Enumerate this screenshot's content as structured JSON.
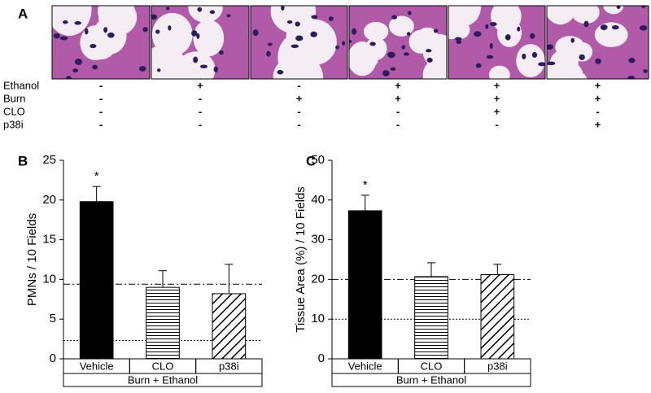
{
  "panel_a": {
    "label": "A",
    "rows": [
      {
        "name": "Ethanol",
        "signs": [
          "-",
          "+",
          "-",
          "+",
          "+",
          "+"
        ]
      },
      {
        "name": "Burn",
        "signs": [
          "-",
          "-",
          "+",
          "+",
          "+",
          "+"
        ]
      },
      {
        "name": "CLO",
        "signs": [
          "-",
          "-",
          "-",
          "-",
          "+",
          "-"
        ]
      },
      {
        "name": "p38i",
        "signs": [
          "-",
          "-",
          "-",
          "-",
          "-",
          "+"
        ]
      }
    ]
  },
  "chart_data": [
    {
      "type": "bar",
      "label": "B",
      "y_label": "PMNs / 10 Fields",
      "categories": [
        "Vehicle",
        "CLO",
        "p38i"
      ],
      "group_label": "Burn + Ethanol",
      "values": [
        19.8,
        9.0,
        8.2
      ],
      "errors": [
        1.9,
        2.1,
        3.7
      ],
      "fills": [
        "solid",
        "horizontal",
        "diagonal"
      ],
      "color": "#000000",
      "ylim": [
        0,
        25
      ],
      "yticks": [
        0,
        5,
        10,
        15,
        20,
        25
      ],
      "reference_lines": [
        {
          "value": 9.4,
          "style": "dashdot"
        },
        {
          "value": 2.3,
          "style": "dotted"
        }
      ],
      "annotations": [
        {
          "text": "*",
          "index": 0
        }
      ]
    },
    {
      "type": "bar",
      "label": "C",
      "y_label": "Tissue Area (%) / 10 Fields",
      "categories": [
        "Vehicle",
        "CLO",
        "p38i"
      ],
      "group_label": "Burn + Ethanol",
      "values": [
        37.3,
        20.7,
        21.2
      ],
      "errors": [
        3.9,
        3.5,
        2.6
      ],
      "fills": [
        "solid",
        "horizontal",
        "diagonal"
      ],
      "color": "#000000",
      "ylim": [
        0,
        50
      ],
      "yticks": [
        0,
        10,
        20,
        30,
        40,
        50
      ],
      "reference_lines": [
        {
          "value": 20,
          "style": "dashdot"
        },
        {
          "value": 10,
          "style": "dotted"
        }
      ],
      "annotations": [
        {
          "text": "*",
          "index": 0
        }
      ]
    }
  ]
}
